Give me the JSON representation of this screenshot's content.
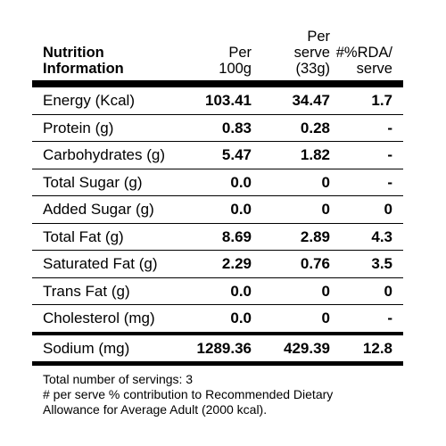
{
  "header": {
    "title": "Nutrition\nInformation",
    "col1": "Per\n100g",
    "col2": "Per\nserve\n(33g)",
    "col3": "#%RDA/\nserve"
  },
  "rows": [
    {
      "label": "Energy (Kcal)",
      "per100": "103.41",
      "perServe": "34.47",
      "rda": "1.7"
    },
    {
      "label": "Protein (g)",
      "per100": "0.83",
      "perServe": "0.28",
      "rda": "-"
    },
    {
      "label": "Carbohydrates (g)",
      "per100": "5.47",
      "perServe": "1.82",
      "rda": "-"
    },
    {
      "label": "Total Sugar (g)",
      "per100": "0.0",
      "perServe": "0",
      "rda": "-"
    },
    {
      "label": "Added Sugar (g)",
      "per100": "0.0",
      "perServe": "0",
      "rda": "0"
    },
    {
      "label": "Total Fat (g)",
      "per100": "8.69",
      "perServe": "2.89",
      "rda": "4.3"
    },
    {
      "label": "Saturated Fat (g)",
      "per100": "2.29",
      "perServe": "0.76",
      "rda": "3.5"
    },
    {
      "label": "Trans Fat (g)",
      "per100": "0.0",
      "perServe": "0",
      "rda": "0"
    },
    {
      "label": "Cholesterol (mg)",
      "per100": "0.0",
      "perServe": "0",
      "rda": "-"
    },
    {
      "label": "Sodium (mg)",
      "per100": "1289.36",
      "perServe": "429.39",
      "rda": "12.8"
    }
  ],
  "footer": {
    "servings": "Total number of servings: 3",
    "note1": "# per serve % contribution to Recommended Dietary",
    "note2": "Allowance for Average Adult (2000 kcal)."
  }
}
